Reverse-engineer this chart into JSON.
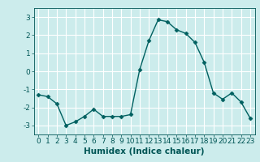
{
  "x": [
    0,
    1,
    2,
    3,
    4,
    5,
    6,
    7,
    8,
    9,
    10,
    11,
    12,
    13,
    14,
    15,
    16,
    17,
    18,
    19,
    20,
    21,
    22,
    23
  ],
  "y": [
    -1.3,
    -1.4,
    -1.8,
    -3.0,
    -2.8,
    -2.5,
    -2.1,
    -2.5,
    -2.5,
    -2.5,
    -2.4,
    0.1,
    1.7,
    2.85,
    2.75,
    2.3,
    2.1,
    1.6,
    0.5,
    -1.2,
    -1.55,
    -1.2,
    -1.7,
    -2.6
  ],
  "line_color": "#006060",
  "marker": "D",
  "markersize": 2.5,
  "linewidth": 1.0,
  "xlabel": "Humidex (Indice chaleur)",
  "xlim": [
    -0.5,
    23.5
  ],
  "ylim": [
    -3.5,
    3.5
  ],
  "yticks": [
    -3,
    -2,
    -1,
    0,
    1,
    2,
    3
  ],
  "xticks": [
    0,
    1,
    2,
    3,
    4,
    5,
    6,
    7,
    8,
    9,
    10,
    11,
    12,
    13,
    14,
    15,
    16,
    17,
    18,
    19,
    20,
    21,
    22,
    23
  ],
  "bg_color": "#ccecec",
  "grid_color": "#ffffff",
  "tick_color": "#005555",
  "xlabel_fontsize": 7.5,
  "tick_fontsize": 6.5
}
